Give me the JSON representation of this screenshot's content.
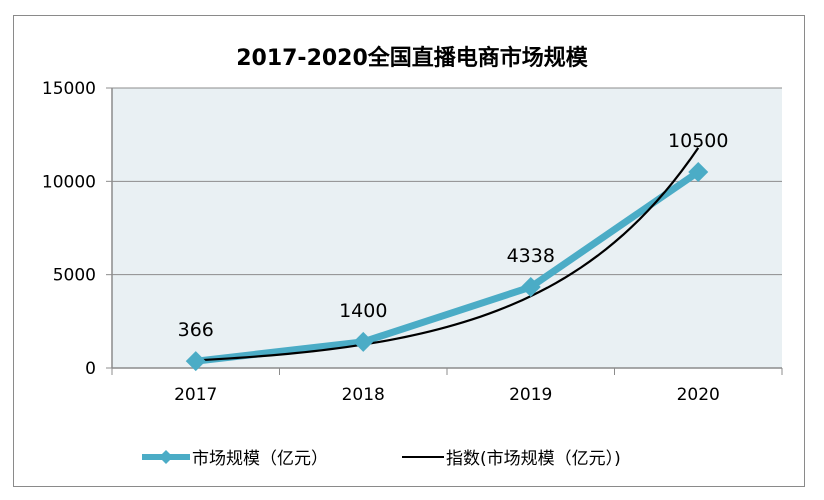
{
  "chart_data": {
    "type": "line",
    "title": "2017-2020全国直播电商市场规模",
    "categories": [
      "2017",
      "2018",
      "2019",
      "2020"
    ],
    "series": [
      {
        "name": "市场规模（亿元）",
        "values": [
          366,
          1400,
          4338,
          10500
        ],
        "color": "#4bacc6",
        "marker": "diamond"
      },
      {
        "name": "指数(市场规模（亿元）)",
        "trend": "exponential",
        "color": "#000000"
      }
    ],
    "data_labels": [
      "366",
      "1400",
      "4338",
      "10500"
    ],
    "yticks": [
      "0",
      "5000",
      "10000",
      "15000"
    ],
    "ylim": [
      0,
      15000
    ],
    "grid": true,
    "plot_bg": "#e9f0f3",
    "legend_position": "bottom"
  }
}
